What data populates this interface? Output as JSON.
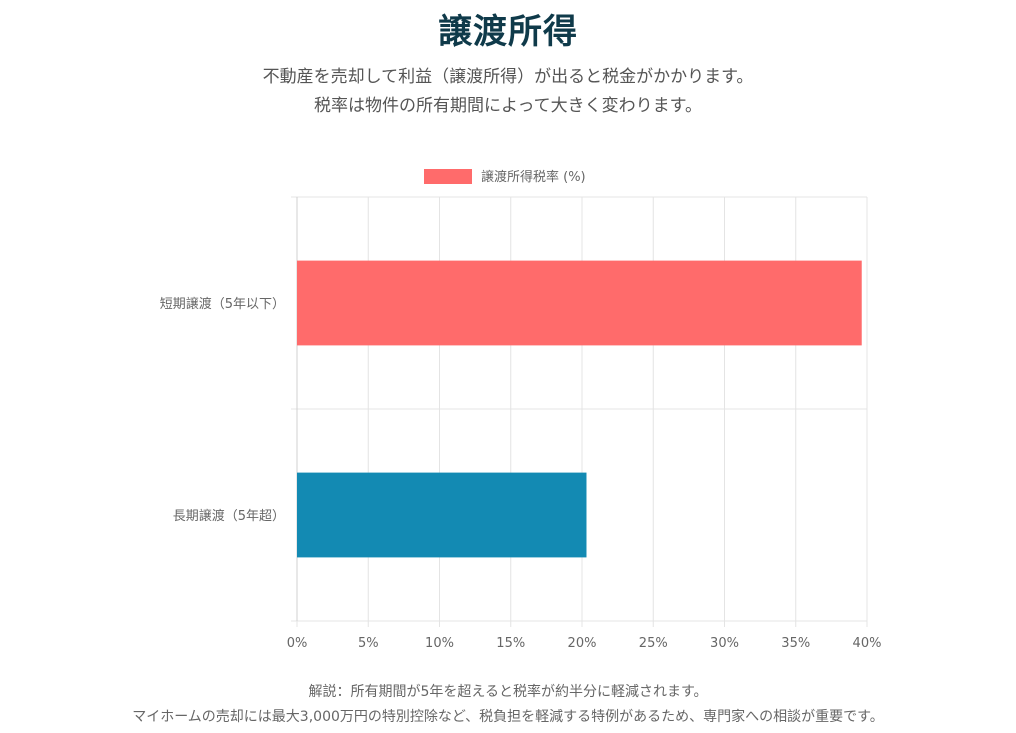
{
  "header": {
    "title": "譲渡所得",
    "subtitle_line1": "不動産を売却して利益（譲渡所得）が出ると税金がかかります。",
    "subtitle_line2": "税率は物件の所有期間によって大きく変わります。"
  },
  "footer": {
    "note_line1": "解説：所有期間が5年を超えると税率が約半分に軽減されます。",
    "note_line2": "マイホームの売却には最大3,000万円の特別控除など、税負担を軽減する特例があるため、専門家への相談が重要です。"
  },
  "chart_data": {
    "type": "bar",
    "orientation": "horizontal",
    "categories": [
      "短期譲渡（5年以下）",
      "長期譲渡（5年超）"
    ],
    "series": [
      {
        "name": "譲渡所得税率 (%)",
        "values": [
          39.63,
          20.315
        ],
        "colors": [
          "#ff6b6b",
          "#138ab3"
        ]
      }
    ],
    "x_ticks": [
      "0%",
      "5%",
      "10%",
      "15%",
      "20%",
      "25%",
      "30%",
      "35%",
      "40%"
    ],
    "xlim": [
      0,
      40
    ],
    "grid": true,
    "legend_position": "top"
  }
}
